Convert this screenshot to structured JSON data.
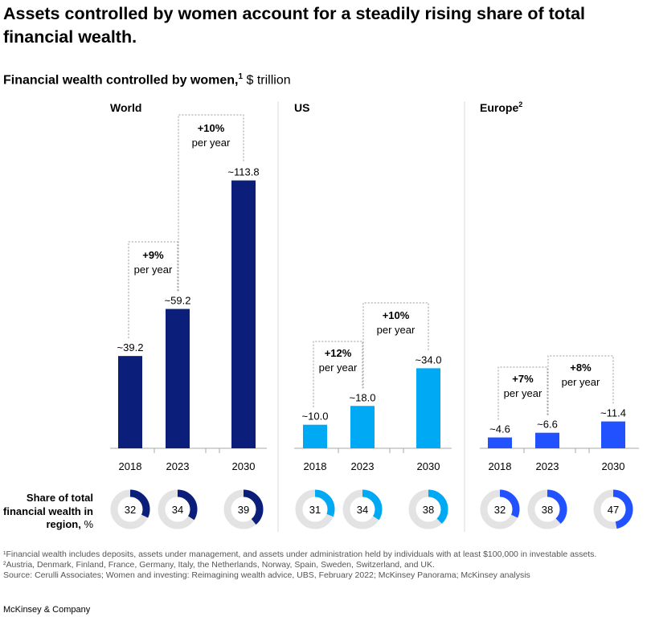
{
  "title": "Assets controlled by women account for a steadily rising share of total financial wealth.",
  "subtitle": {
    "bold": "Financial wealth controlled by women,",
    "sup": "1",
    "unit": " $ trillion"
  },
  "share_label": {
    "bold": "Share of total financial wealth in region,",
    "unit": " %"
  },
  "footnotes": [
    "¹Financial wealth includes deposits, assets under management, and assets under administration held by individuals with at least $100,000 in investable assets.",
    "²Austria, Denmark, Finland, France, Germany, Italy, the Netherlands, Norway, Spain, Sweden, Switzerland, and UK.",
    "Source: Cerulli Associates; Women and investing: Reimagining wealth advice, UBS, February 2022; McKinsey Panorama; McKinsey analysis"
  ],
  "brand": "McKinsey & Company",
  "chart_data": {
    "type": "bar",
    "title": "Financial wealth controlled by women, $ trillion",
    "categories": [
      "2018",
      "2023",
      "2030"
    ],
    "panels": [
      {
        "name": "World",
        "sup": "",
        "color": "#0b1f7a",
        "ylim": [
          0,
          114
        ],
        "values": [
          39.2,
          59.2,
          113.8
        ],
        "labels": [
          "~39.2",
          "~59.2",
          "~113.8"
        ],
        "growth": [
          {
            "pct": "+9%",
            "per": "per year",
            "from": 0,
            "to": 1
          },
          {
            "pct": "+10%",
            "per": "per year",
            "from": 1,
            "to": 2
          }
        ],
        "share": [
          32,
          34,
          39
        ]
      },
      {
        "name": "US",
        "sup": "",
        "color": "#00a9f4",
        "ylim": [
          0,
          114
        ],
        "values": [
          10.0,
          18.0,
          34.0
        ],
        "labels": [
          "~10.0",
          "~18.0",
          "~34.0"
        ],
        "growth": [
          {
            "pct": "+12%",
            "per": "per year",
            "from": 0,
            "to": 1
          },
          {
            "pct": "+10%",
            "per": "per year",
            "from": 1,
            "to": 2
          }
        ],
        "share": [
          31,
          34,
          38
        ]
      },
      {
        "name": "Europe",
        "sup": "2",
        "color": "#2251ff",
        "ylim": [
          0,
          114
        ],
        "values": [
          4.6,
          6.6,
          11.4
        ],
        "labels": [
          "~4.6",
          "~6.6",
          "~11.4"
        ],
        "growth": [
          {
            "pct": "+7%",
            "per": "per year",
            "from": 0,
            "to": 1
          },
          {
            "pct": "+8%",
            "per": "per year",
            "from": 1,
            "to": 2
          }
        ],
        "share": [
          32,
          38,
          47
        ]
      }
    ]
  }
}
